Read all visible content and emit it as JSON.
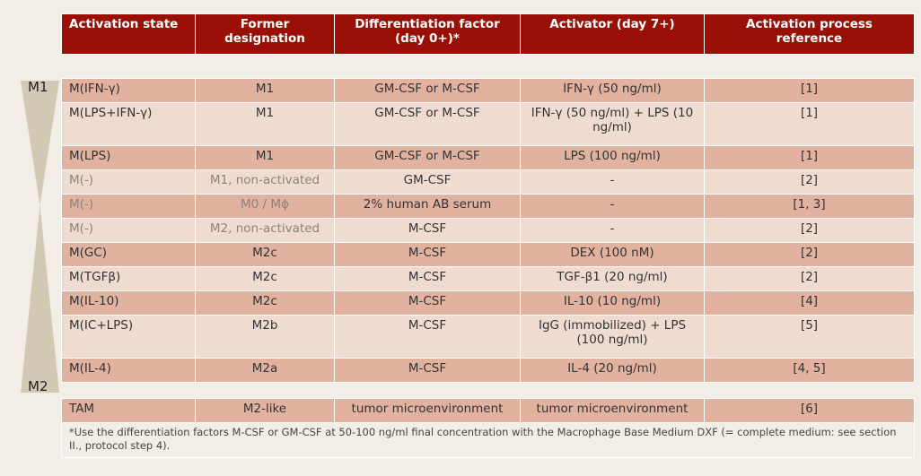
{
  "scale": {
    "top_label": "M1",
    "bottom_label": "M2",
    "color": "#d2c9b4"
  },
  "colors": {
    "header": "#9b1006",
    "row_dark": "#e2b2a0",
    "row_light": "#f0dbd0",
    "background": "#f2ede6"
  },
  "table": {
    "headers": [
      "Activation state",
      "Former designation",
      "Differentiation factor (day 0+)*",
      "Activator (day 7+)",
      "Activation process reference"
    ],
    "rows": [
      [
        "M(IFN-γ)",
        "M1",
        "GM-CSF or M-CSF",
        "IFN-γ (50 ng/ml)",
        "[1]"
      ],
      [
        "M(LPS+IFN-γ)",
        "M1",
        "GM-CSF or M-CSF",
        "IFN-γ (50 ng/ml) + LPS (10 ng/ml)",
        "[1]"
      ],
      [
        "M(LPS)",
        "M1",
        "GM-CSF or M-CSF",
        "LPS (100 ng/ml)",
        "[1]"
      ],
      [
        "M(-)",
        "M1, non-activated",
        "GM-CSF",
        "-",
        "[2]"
      ],
      [
        "M(-)",
        "M0 / Mϕ",
        "2% human AB serum",
        "-",
        "[1, 3]"
      ],
      [
        "M(-)",
        "M2, non-activated",
        "M-CSF",
        "-",
        "[2]"
      ],
      [
        "M(GC)",
        "M2c",
        "M-CSF",
        "DEX (100 nM)",
        "[2]"
      ],
      [
        "M(TGFβ)",
        "M2c",
        "M-CSF",
        "TGF-β1 (20 ng/ml)",
        "[2]"
      ],
      [
        "M(IL-10)",
        "M2c",
        "M-CSF",
        "IL-10 (10 ng/ml)",
        "[4]"
      ],
      [
        "M(IC+LPS)",
        "M2b",
        "M-CSF",
        "IgG (immobilized) + LPS (100 ng/ml)",
        "[5]"
      ],
      [
        "M(IL-4)",
        "M2a",
        "M-CSF",
        "IL-4 (20 ng/ml)",
        "[4, 5]"
      ]
    ],
    "tam_row": [
      "TAM",
      "M2-like",
      "tumor microenvironment",
      "tumor microenvironment",
      "[6]"
    ],
    "footnote": "*Use the differentiation factors M-CSF or GM-CSF at 50-100 ng/ml final concentration with the Macrophage Base Medium DXF (= complete medium: see section II., protocol step 4)."
  }
}
